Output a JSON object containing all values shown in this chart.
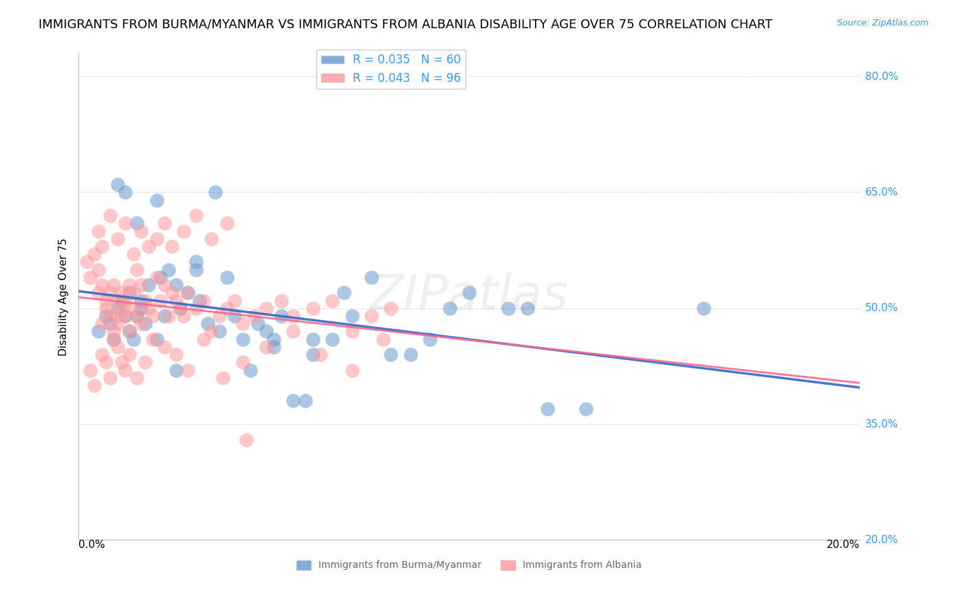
{
  "title": "IMMIGRANTS FROM BURMA/MYANMAR VS IMMIGRANTS FROM ALBANIA DISABILITY AGE OVER 75 CORRELATION CHART",
  "source": "Source: ZipAtlas.com",
  "ylabel": "Disability Age Over 75",
  "ylabel_ticks": [
    "80.0%",
    "65.0%",
    "50.0%",
    "35.0%",
    "20.0%"
  ],
  "ylabel_tick_vals": [
    0.8,
    0.65,
    0.5,
    0.35,
    0.2
  ],
  "xlim": [
    0.0,
    0.2
  ],
  "ylim": [
    0.2,
    0.83
  ],
  "R_burma": 0.035,
  "N_burma": 60,
  "R_albania": 0.043,
  "N_albania": 96,
  "color_burma": "#6699CC",
  "color_albania": "#FF9999",
  "line_color_burma": "#3366CC",
  "line_color_albania": "#FF6688",
  "watermark": "ZIPatlas",
  "background_color": "#FFFFFF",
  "grid_color": "#DDDDDD",
  "title_fontsize": 13,
  "axis_label_fontsize": 11,
  "tick_fontsize": 11,
  "legend_fontsize": 12,
  "burma_x": [
    0.005,
    0.007,
    0.008,
    0.009,
    0.01,
    0.011,
    0.012,
    0.013,
    0.013,
    0.014,
    0.015,
    0.016,
    0.016,
    0.017,
    0.018,
    0.02,
    0.021,
    0.022,
    0.023,
    0.025,
    0.026,
    0.028,
    0.03,
    0.031,
    0.033,
    0.035,
    0.036,
    0.038,
    0.04,
    0.042,
    0.044,
    0.046,
    0.048,
    0.05,
    0.052,
    0.055,
    0.058,
    0.06,
    0.065,
    0.068,
    0.07,
    0.075,
    0.08,
    0.085,
    0.09,
    0.095,
    0.1,
    0.11,
    0.115,
    0.12,
    0.01,
    0.012,
    0.015,
    0.02,
    0.025,
    0.03,
    0.05,
    0.06,
    0.13,
    0.16
  ],
  "burma_y": [
    0.47,
    0.49,
    0.48,
    0.46,
    0.5,
    0.51,
    0.49,
    0.47,
    0.52,
    0.46,
    0.49,
    0.5,
    0.51,
    0.48,
    0.53,
    0.46,
    0.54,
    0.49,
    0.55,
    0.42,
    0.5,
    0.52,
    0.56,
    0.51,
    0.48,
    0.65,
    0.47,
    0.54,
    0.49,
    0.46,
    0.42,
    0.48,
    0.47,
    0.46,
    0.49,
    0.38,
    0.38,
    0.46,
    0.46,
    0.52,
    0.49,
    0.54,
    0.44,
    0.44,
    0.46,
    0.5,
    0.52,
    0.5,
    0.5,
    0.37,
    0.66,
    0.65,
    0.61,
    0.64,
    0.53,
    0.55,
    0.45,
    0.44,
    0.37,
    0.5
  ],
  "albania_x": [
    0.002,
    0.003,
    0.004,
    0.005,
    0.005,
    0.006,
    0.006,
    0.007,
    0.007,
    0.008,
    0.008,
    0.009,
    0.009,
    0.01,
    0.01,
    0.01,
    0.011,
    0.011,
    0.012,
    0.012,
    0.013,
    0.013,
    0.014,
    0.014,
    0.015,
    0.015,
    0.016,
    0.016,
    0.017,
    0.018,
    0.019,
    0.02,
    0.021,
    0.022,
    0.023,
    0.024,
    0.025,
    0.026,
    0.027,
    0.028,
    0.03,
    0.032,
    0.034,
    0.036,
    0.038,
    0.04,
    0.042,
    0.045,
    0.048,
    0.052,
    0.055,
    0.06,
    0.065,
    0.07,
    0.075,
    0.08,
    0.003,
    0.004,
    0.006,
    0.007,
    0.008,
    0.009,
    0.01,
    0.011,
    0.012,
    0.013,
    0.015,
    0.017,
    0.019,
    0.022,
    0.025,
    0.028,
    0.032,
    0.037,
    0.042,
    0.048,
    0.055,
    0.062,
    0.07,
    0.078,
    0.005,
    0.006,
    0.008,
    0.01,
    0.012,
    0.014,
    0.016,
    0.018,
    0.02,
    0.022,
    0.024,
    0.027,
    0.03,
    0.034,
    0.038,
    0.043
  ],
  "albania_y": [
    0.56,
    0.54,
    0.57,
    0.55,
    0.52,
    0.53,
    0.48,
    0.51,
    0.5,
    0.49,
    0.52,
    0.47,
    0.53,
    0.48,
    0.49,
    0.51,
    0.5,
    0.52,
    0.49,
    0.51,
    0.53,
    0.47,
    0.5,
    0.52,
    0.55,
    0.49,
    0.53,
    0.48,
    0.51,
    0.5,
    0.49,
    0.54,
    0.51,
    0.53,
    0.49,
    0.52,
    0.51,
    0.5,
    0.49,
    0.52,
    0.5,
    0.51,
    0.47,
    0.49,
    0.5,
    0.51,
    0.48,
    0.49,
    0.5,
    0.51,
    0.49,
    0.5,
    0.51,
    0.47,
    0.49,
    0.5,
    0.42,
    0.4,
    0.44,
    0.43,
    0.41,
    0.46,
    0.45,
    0.43,
    0.42,
    0.44,
    0.41,
    0.43,
    0.46,
    0.45,
    0.44,
    0.42,
    0.46,
    0.41,
    0.43,
    0.45,
    0.47,
    0.44,
    0.42,
    0.46,
    0.6,
    0.58,
    0.62,
    0.59,
    0.61,
    0.57,
    0.6,
    0.58,
    0.59,
    0.61,
    0.58,
    0.6,
    0.62,
    0.59,
    0.61,
    0.33
  ]
}
